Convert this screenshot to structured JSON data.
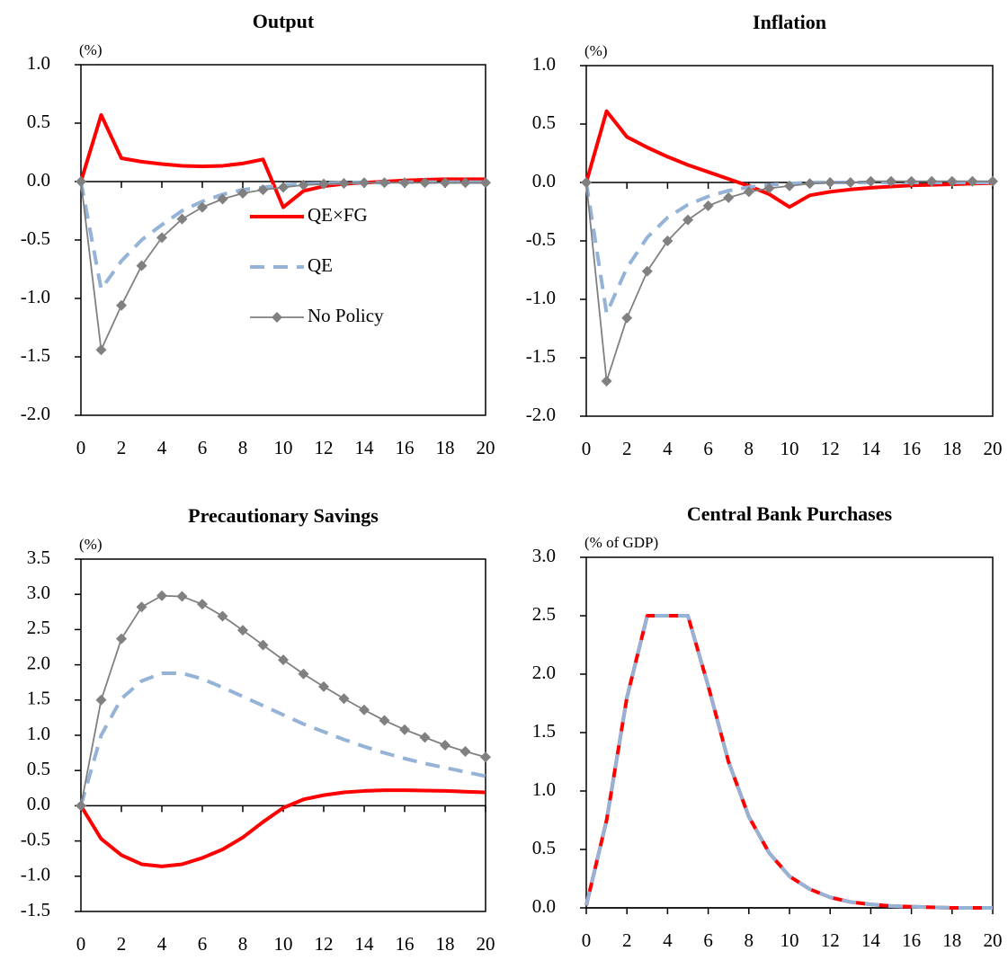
{
  "chart_data": [
    {
      "type": "line",
      "title": "Output",
      "y_unit": "(%)",
      "legend": "center",
      "x": [
        0,
        1,
        2,
        3,
        4,
        5,
        6,
        7,
        8,
        9,
        10,
        11,
        12,
        13,
        14,
        15,
        16,
        17,
        18,
        19,
        20
      ],
      "series": [
        {
          "name": "QE×FG",
          "color": "#ff0000",
          "style": "solid",
          "values": [
            0,
            0.57,
            0.2,
            0.17,
            0.15,
            0.135,
            0.13,
            0.135,
            0.155,
            0.19,
            -0.22,
            -0.08,
            -0.04,
            -0.02,
            -0.01,
            0,
            0.01,
            0.015,
            0.02,
            0.02,
            0.02
          ]
        },
        {
          "name": "QE",
          "color": "#95b3d7",
          "style": "dashed",
          "values": [
            0,
            -0.92,
            -0.68,
            -0.5,
            -0.37,
            -0.25,
            -0.17,
            -0.11,
            -0.07,
            -0.05,
            -0.03,
            -0.02,
            -0.015,
            -0.01,
            -0.01,
            -0.01,
            -0.005,
            -0.005,
            -0.005,
            -0.005,
            -0.005
          ]
        },
        {
          "name": "No Policy",
          "color": "#808080",
          "style": "markers",
          "values": [
            0,
            -1.44,
            -1.06,
            -0.72,
            -0.48,
            -0.32,
            -0.22,
            -0.15,
            -0.1,
            -0.07,
            -0.05,
            -0.03,
            -0.02,
            -0.015,
            -0.01,
            -0.01,
            -0.01,
            -0.01,
            -0.01,
            -0.01,
            -0.01
          ]
        }
      ],
      "xlim": [
        0,
        20
      ],
      "xticks": [
        0,
        2,
        4,
        6,
        8,
        10,
        12,
        14,
        16,
        18,
        20
      ],
      "ylim": [
        -2,
        1
      ],
      "yticks": [
        {
          "value": -2,
          "label": "-2.0"
        },
        {
          "value": -1.5,
          "label": "-1.5"
        },
        {
          "value": -1,
          "label": "-1.0"
        },
        {
          "value": -0.5,
          "label": "-0.5"
        },
        {
          "value": 0,
          "label": "0.0"
        },
        {
          "value": 0.5,
          "label": "0.5"
        },
        {
          "value": 1,
          "label": "1.0"
        }
      ]
    },
    {
      "type": "line",
      "title": "Inflation",
      "y_unit": "(%)",
      "x": [
        0,
        1,
        2,
        3,
        4,
        5,
        6,
        7,
        8,
        9,
        10,
        11,
        12,
        13,
        14,
        15,
        16,
        17,
        18,
        19,
        20
      ],
      "series": [
        {
          "name": "QE×FG",
          "color": "#ff0000",
          "style": "solid",
          "values": [
            0,
            0.61,
            0.39,
            0.3,
            0.22,
            0.15,
            0.09,
            0.03,
            -0.03,
            -0.1,
            -0.21,
            -0.11,
            -0.08,
            -0.06,
            -0.045,
            -0.035,
            -0.025,
            -0.02,
            -0.015,
            -0.01,
            -0.005
          ]
        },
        {
          "name": "QE",
          "color": "#95b3d7",
          "style": "dashed",
          "values": [
            0,
            -1.12,
            -0.73,
            -0.47,
            -0.3,
            -0.19,
            -0.12,
            -0.07,
            -0.04,
            -0.02,
            -0.01,
            0,
            0,
            0,
            0,
            0,
            0,
            0,
            0,
            0,
            0
          ]
        },
        {
          "name": "No Policy",
          "color": "#808080",
          "style": "markers",
          "values": [
            0,
            -1.7,
            -1.16,
            -0.76,
            -0.5,
            -0.32,
            -0.2,
            -0.13,
            -0.08,
            -0.05,
            -0.03,
            -0.01,
            0,
            0,
            0.01,
            0.01,
            0.01,
            0.01,
            0.01,
            0.01,
            0.01
          ]
        }
      ],
      "xlim": [
        0,
        20
      ],
      "xticks": [
        0,
        2,
        4,
        6,
        8,
        10,
        12,
        14,
        16,
        18,
        20
      ],
      "ylim": [
        -2,
        1
      ],
      "yticks": [
        {
          "value": -2,
          "label": "-2.0"
        },
        {
          "value": -1.5,
          "label": "-1.5"
        },
        {
          "value": -1,
          "label": "-1.0"
        },
        {
          "value": -0.5,
          "label": "-0.5"
        },
        {
          "value": 0,
          "label": "0.0"
        },
        {
          "value": 0.5,
          "label": "0.5"
        },
        {
          "value": 1,
          "label": "1.0"
        }
      ]
    },
    {
      "type": "line",
      "title": "Precautionary Savings",
      "y_unit": "(%)",
      "x": [
        0,
        1,
        2,
        3,
        4,
        5,
        6,
        7,
        8,
        9,
        10,
        11,
        12,
        13,
        14,
        15,
        16,
        17,
        18,
        19,
        20
      ],
      "series": [
        {
          "name": "QE×FG",
          "color": "#ff0000",
          "style": "solid",
          "values": [
            0,
            -0.47,
            -0.7,
            -0.83,
            -0.86,
            -0.83,
            -0.74,
            -0.62,
            -0.45,
            -0.23,
            -0.03,
            0.09,
            0.15,
            0.19,
            0.21,
            0.22,
            0.22,
            0.215,
            0.21,
            0.2,
            0.19
          ]
        },
        {
          "name": "QE",
          "color": "#95b3d7",
          "style": "dashed",
          "values": [
            0,
            1.0,
            1.52,
            1.77,
            1.88,
            1.88,
            1.8,
            1.68,
            1.55,
            1.42,
            1.29,
            1.16,
            1.05,
            0.94,
            0.84,
            0.75,
            0.67,
            0.6,
            0.54,
            0.48,
            0.42
          ]
        },
        {
          "name": "No Policy",
          "color": "#808080",
          "style": "markers",
          "values": [
            0,
            1.5,
            2.37,
            2.82,
            2.98,
            2.97,
            2.86,
            2.69,
            2.49,
            2.28,
            2.07,
            1.87,
            1.69,
            1.52,
            1.36,
            1.21,
            1.08,
            0.97,
            0.86,
            0.77,
            0.69
          ]
        }
      ],
      "xlim": [
        0,
        20
      ],
      "xticks": [
        0,
        2,
        4,
        6,
        8,
        10,
        12,
        14,
        16,
        18,
        20
      ],
      "ylim": [
        -1.5,
        3.5
      ],
      "yticks": [
        {
          "value": -1.5,
          "label": "-1.5"
        },
        {
          "value": -1,
          "label": "-1.0"
        },
        {
          "value": -0.5,
          "label": "-0.5"
        },
        {
          "value": 0,
          "label": "0.0"
        },
        {
          "value": 0.5,
          "label": "0.5"
        },
        {
          "value": 1,
          "label": "1.0"
        },
        {
          "value": 1.5,
          "label": "1.5"
        },
        {
          "value": 2,
          "label": "2.0"
        },
        {
          "value": 2.5,
          "label": "2.5"
        },
        {
          "value": 3,
          "label": "3.0"
        },
        {
          "value": 3.5,
          "label": "3.5"
        }
      ]
    },
    {
      "type": "line",
      "title": "Central Bank Purchases",
      "y_unit": "(% of GDP)",
      "x": [
        0,
        1,
        2,
        3,
        4,
        5,
        6,
        7,
        8,
        9,
        10,
        11,
        12,
        13,
        14,
        15,
        16,
        17,
        18,
        19,
        20
      ],
      "series": [
        {
          "name": "QE×FG",
          "color": "#ff0000",
          "style": "solid",
          "values": [
            0.02,
            0.75,
            1.8,
            2.5,
            2.5,
            2.5,
            1.9,
            1.25,
            0.78,
            0.47,
            0.27,
            0.16,
            0.09,
            0.05,
            0.03,
            0.015,
            0.01,
            0.005,
            0,
            0,
            0
          ]
        },
        {
          "name": "QE",
          "color": "#95b3d7",
          "style": "dashed",
          "values": [
            0.02,
            0.75,
            1.8,
            2.5,
            2.5,
            2.5,
            1.9,
            1.25,
            0.78,
            0.47,
            0.27,
            0.16,
            0.09,
            0.05,
            0.03,
            0.015,
            0.01,
            0.005,
            0,
            0,
            0
          ]
        }
      ],
      "xlim": [
        0,
        20
      ],
      "xticks": [
        0,
        2,
        4,
        6,
        8,
        10,
        12,
        14,
        16,
        18,
        20
      ],
      "ylim": [
        0,
        3
      ],
      "yticks": [
        {
          "value": 0,
          "label": "0.0"
        },
        {
          "value": 0.5,
          "label": "0.5"
        },
        {
          "value": 1,
          "label": "1.0"
        },
        {
          "value": 1.5,
          "label": "1.5"
        },
        {
          "value": 2,
          "label": "2.0"
        },
        {
          "value": 2.5,
          "label": "2.5"
        },
        {
          "value": 3,
          "label": "3.0"
        }
      ]
    }
  ]
}
